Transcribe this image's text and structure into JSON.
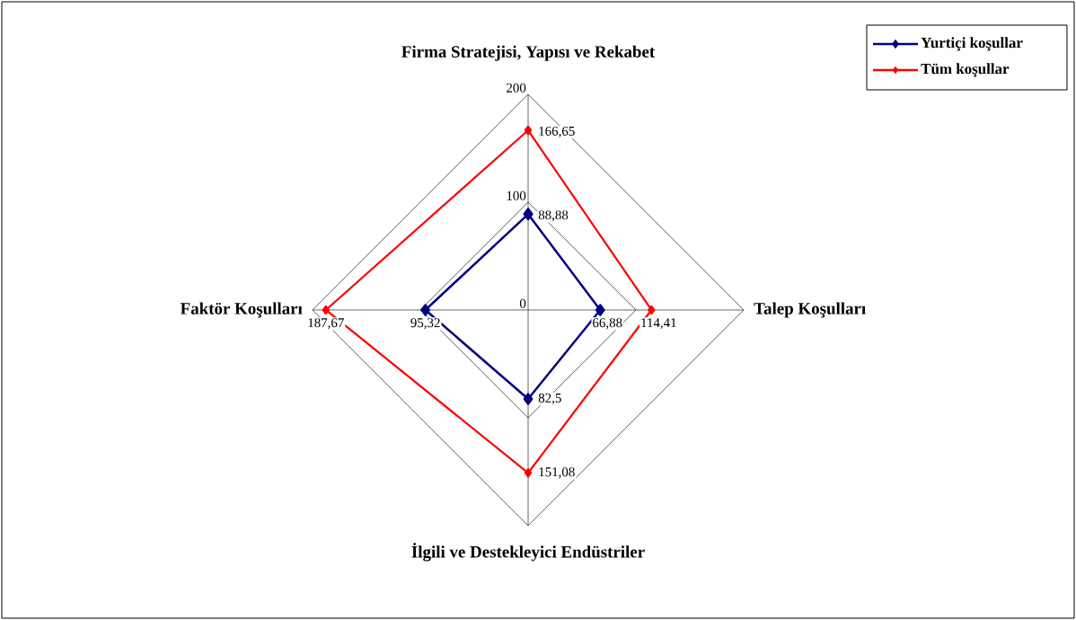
{
  "chart_data": {
    "type": "radar",
    "categories": [
      "Firma Stratejisi, Yapısı ve Rekabet",
      "Talep Koşulları",
      "İlgili ve Destekleyici Endüstriler",
      "Faktör Koşulları"
    ],
    "series": [
      {
        "name": "Yurtiçi koşullar",
        "color": "#000080",
        "values": [
          88.88,
          66.88,
          82.5,
          95.32
        ],
        "value_labels": [
          "88,88",
          "66,88",
          "82,5",
          "95,32"
        ]
      },
      {
        "name": "Tüm koşullar",
        "color": "#ff0000",
        "values": [
          166.65,
          114.41,
          151.08,
          187.67
        ],
        "value_labels": [
          "166,65",
          "114,41",
          "151,08",
          "187,67"
        ]
      }
    ],
    "ylim": [
      0,
      200
    ],
    "yticks": [
      0,
      100,
      200
    ],
    "grid": true,
    "legend": "top right",
    "marker": "diamond",
    "line_style": "solid"
  }
}
